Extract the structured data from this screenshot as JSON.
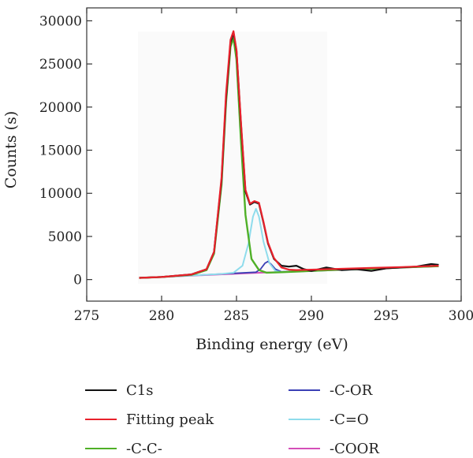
{
  "chart_data": {
    "type": "line",
    "title": "",
    "xlabel": "Binding energy (eV)",
    "ylabel": "Counts (s)",
    "xlim": [
      275,
      300
    ],
    "ylim": [
      -2500,
      31500
    ],
    "xticks": [
      275,
      280,
      285,
      290,
      295,
      300
    ],
    "xtick_labels": [
      "275",
      "280",
      "285",
      "290",
      "295",
      "300"
    ],
    "yticks": [
      0,
      5000,
      10000,
      15000,
      20000,
      25000,
      30000
    ],
    "ytick_labels": [
      "0",
      "5000",
      "10000",
      "15000",
      "20000",
      "25000",
      "30000"
    ],
    "grid": false,
    "legend_position": "bottom",
    "series": [
      {
        "name": "C1s",
        "color": "#111111",
        "x": [
          278.5,
          280,
          282,
          283,
          283.5,
          284,
          284.3,
          284.6,
          284.8,
          285,
          285.3,
          285.6,
          285.9,
          286.2,
          286.5,
          286.8,
          287.1,
          287.5,
          288,
          288.5,
          289,
          289.5,
          290,
          291,
          292,
          293,
          294,
          295,
          296,
          297,
          298,
          298.5
        ],
        "y": [
          200,
          300,
          600,
          1200,
          3200,
          11500,
          21000,
          27500,
          28600,
          26500,
          18000,
          10200,
          8700,
          9000,
          8800,
          6600,
          4200,
          2400,
          1600,
          1500,
          1600,
          1200,
          1000,
          1400,
          1100,
          1200,
          1000,
          1300,
          1400,
          1500,
          1800,
          1700
        ]
      },
      {
        "name": "Fitting peak",
        "color": "#e8212b",
        "x": [
          278.5,
          280,
          282,
          283,
          283.5,
          284,
          284.3,
          284.6,
          284.8,
          285,
          285.3,
          285.6,
          285.9,
          286.2,
          286.5,
          286.8,
          287.1,
          287.5,
          288,
          288.5,
          289,
          290,
          292,
          294,
          296,
          298.5
        ],
        "y": [
          200,
          300,
          600,
          1200,
          3200,
          11800,
          21500,
          27800,
          28800,
          26600,
          18200,
          10400,
          8800,
          9100,
          8900,
          6700,
          4300,
          2500,
          1400,
          1150,
          1100,
          1150,
          1250,
          1350,
          1450,
          1600
        ]
      },
      {
        "name": "-C-C-",
        "color": "#4fb027",
        "x": [
          278.5,
          280,
          282,
          283,
          283.5,
          284,
          284.3,
          284.6,
          284.8,
          285,
          285.3,
          285.6,
          286,
          286.5,
          287,
          288,
          290,
          292,
          294,
          296,
          298.5
        ],
        "y": [
          200,
          300,
          550,
          1100,
          3000,
          11000,
          20500,
          27000,
          28000,
          25500,
          16000,
          7500,
          2400,
          1100,
          800,
          850,
          1000,
          1150,
          1250,
          1400,
          1550
        ]
      },
      {
        "name": "-C-OR",
        "color": "#3b3fb5",
        "x": [
          278.5,
          280,
          284,
          286.3,
          286.6,
          286.9,
          287.1,
          287.3,
          287.6,
          288,
          290,
          292,
          294,
          296,
          298.5
        ],
        "y": [
          200,
          300,
          650,
          850,
          1200,
          1900,
          2100,
          1800,
          1200,
          900,
          1000,
          1150,
          1250,
          1400,
          1550
        ]
      },
      {
        "name": "-C=O",
        "color": "#8fdcec",
        "x": [
          278.5,
          280,
          284,
          284.8,
          285.4,
          285.8,
          286.1,
          286.3,
          286.5,
          286.8,
          287.2,
          287.6,
          288,
          290,
          292,
          294,
          296,
          298.5
        ],
        "y": [
          200,
          300,
          650,
          800,
          1600,
          4200,
          7300,
          8200,
          7300,
          4400,
          1900,
          1000,
          850,
          1000,
          1150,
          1250,
          1400,
          1550
        ]
      },
      {
        "name": "-COOR",
        "color": "#d44fb8",
        "x": [
          278.5,
          282,
          286,
          290,
          294,
          298.5
        ],
        "y": [
          200,
          450,
          750,
          1000,
          1250,
          1550
        ]
      }
    ]
  }
}
